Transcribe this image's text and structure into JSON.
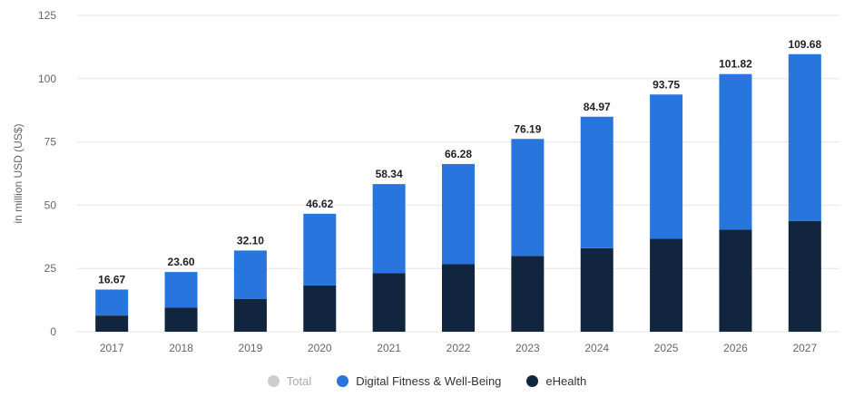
{
  "chart_data": {
    "type": "bar",
    "stacked": true,
    "ylabel": "in million USD (US$)",
    "ylim": [
      0,
      125
    ],
    "yticks": [
      0,
      25,
      50,
      75,
      100,
      125
    ],
    "grid": true,
    "legend_position": "bottom",
    "categories": [
      "2017",
      "2018",
      "2019",
      "2020",
      "2021",
      "2022",
      "2023",
      "2024",
      "2025",
      "2026",
      "2027"
    ],
    "totals": [
      "16.67",
      "23.60",
      "32.10",
      "46.62",
      "58.34",
      "66.28",
      "76.19",
      "84.97",
      "93.75",
      "101.82",
      "109.68"
    ],
    "series": [
      {
        "name": "eHealth",
        "color": "#11253e",
        "values": [
          6.4,
          9.6,
          13.0,
          18.3,
          23.2,
          26.7,
          30.0,
          33.0,
          36.7,
          40.3,
          43.8
        ]
      },
      {
        "name": "Digital Fitness & Well-Being",
        "color": "#2876dd",
        "values": [
          10.27,
          14.0,
          19.1,
          28.32,
          35.14,
          39.58,
          46.19,
          51.97,
          57.05,
          61.52,
          65.88
        ]
      }
    ],
    "legend": [
      {
        "name": "Total",
        "color": "#cccccc",
        "muted": true
      },
      {
        "name": "Digital Fitness & Well-Being",
        "color": "#2876dd",
        "muted": false
      },
      {
        "name": "eHealth",
        "color": "#11253e",
        "muted": false
      }
    ]
  }
}
